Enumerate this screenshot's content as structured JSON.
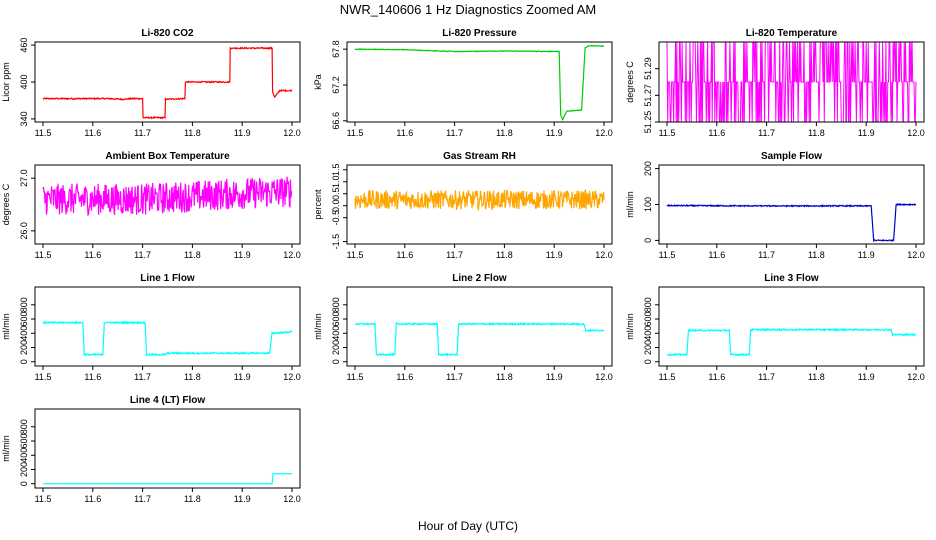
{
  "figure": {
    "title": "NWR_140606  1 Hz Diagnostics Zoomed AM",
    "xlabel": "Hour of Day (UTC)"
  },
  "chart_data": [
    {
      "type": "line",
      "title": "Li-820 CO2",
      "ylabel": "Licor ppm",
      "color": "#ff0000",
      "xlim": [
        11.5,
        12.0
      ],
      "xticks": [
        "11.5",
        "11.6",
        "11.7",
        "11.8",
        "11.9",
        "12.0"
      ],
      "ylim": [
        335,
        465
      ],
      "yticks": [
        "340",
        "400",
        "460"
      ],
      "ytick_values": [
        340,
        400,
        460
      ],
      "noise": 1.0,
      "points": [
        [
          11.5,
          373
        ],
        [
          11.63,
          373
        ],
        [
          11.66,
          372
        ],
        [
          11.68,
          373
        ],
        [
          11.7,
          373
        ],
        [
          11.701,
          342
        ],
        [
          11.745,
          342
        ],
        [
          11.746,
          372
        ],
        [
          11.785,
          373
        ],
        [
          11.786,
          400
        ],
        [
          11.875,
          400
        ],
        [
          11.876,
          455
        ],
        [
          11.96,
          455
        ],
        [
          11.961,
          385
        ],
        [
          11.965,
          375
        ],
        [
          11.975,
          386
        ],
        [
          12.0,
          386
        ]
      ]
    },
    {
      "type": "line",
      "title": "Li-820 Pressure",
      "ylabel": "kPa",
      "color": "#00cc00",
      "xlim": [
        11.5,
        12.0
      ],
      "xticks": [
        "11.5",
        "11.6",
        "11.7",
        "11.8",
        "11.9",
        "12.0"
      ],
      "ylim": [
        66.58,
        67.92
      ],
      "yticks": [
        "66.6",
        "67.2",
        "67.8"
      ],
      "ytick_values": [
        66.6,
        67.2,
        67.8
      ],
      "noise": 0.005,
      "points": [
        [
          11.5,
          67.8
        ],
        [
          11.6,
          67.79
        ],
        [
          11.7,
          67.76
        ],
        [
          11.8,
          67.77
        ],
        [
          11.91,
          67.76
        ],
        [
          11.913,
          66.7
        ],
        [
          11.917,
          66.62
        ],
        [
          11.925,
          66.76
        ],
        [
          11.955,
          66.78
        ],
        [
          11.962,
          67.82
        ],
        [
          11.97,
          67.86
        ],
        [
          12.0,
          67.85
        ]
      ]
    },
    {
      "type": "line",
      "title": "Li-820 Temperature",
      "ylabel": "degrees C",
      "color": "#ff00ff",
      "xlim": [
        11.5,
        12.0
      ],
      "xticks": [
        "11.5",
        "11.6",
        "11.7",
        "11.8",
        "11.9",
        "12.0"
      ],
      "ylim": [
        51.25,
        51.31
      ],
      "yticks": [
        "51.25",
        "51.27",
        "51.29"
      ],
      "ytick_values": [
        51.25,
        51.27,
        51.29
      ],
      "levels": [
        51.25,
        51.28,
        51.31
      ],
      "main_level": 51.28
    },
    {
      "type": "line",
      "title": "Ambient Box Temperature",
      "ylabel": "degrees C",
      "color": "#ff00ff",
      "xlim": [
        11.5,
        12.0
      ],
      "xticks": [
        "11.5",
        "11.6",
        "11.7",
        "11.8",
        "11.9",
        "12.0"
      ],
      "ylim": [
        25.75,
        27.25
      ],
      "yticks": [
        "26.0",
        "27.0"
      ],
      "ytick_values": [
        26.0,
        27.0
      ],
      "noise": 0.3,
      "points": [
        [
          11.5,
          26.6
        ],
        [
          11.7,
          26.6
        ],
        [
          11.88,
          26.7
        ],
        [
          12.0,
          26.75
        ]
      ]
    },
    {
      "type": "line",
      "title": "Gas Stream RH",
      "ylabel": "percent",
      "color": "#ffa500",
      "xlim": [
        11.5,
        12.0
      ],
      "xticks": [
        "11.5",
        "11.6",
        "11.7",
        "11.8",
        "11.9",
        "12.0"
      ],
      "ylim": [
        -1.6,
        1.7
      ],
      "yticks": [
        "-1.5",
        "-0.5",
        "0.0",
        "0.5",
        "1.0",
        "1.5"
      ],
      "ytick_values": [
        -1.5,
        -0.5,
        0.0,
        0.5,
        1.0,
        1.5
      ],
      "noise": 0.4,
      "points": [
        [
          11.5,
          0.25
        ],
        [
          12.0,
          0.25
        ]
      ]
    },
    {
      "type": "line",
      "title": "Sample Flow",
      "ylabel": "ml/min",
      "color": "#0000cc",
      "xlim": [
        11.5,
        12.0
      ],
      "xticks": [
        "11.5",
        "11.6",
        "11.7",
        "11.8",
        "11.9",
        "12.0"
      ],
      "ylim": [
        -10,
        210
      ],
      "yticks": [
        "0",
        "100",
        "200"
      ],
      "ytick_values": [
        0,
        100,
        200
      ],
      "noise": 1.5,
      "points": [
        [
          11.5,
          97
        ],
        [
          11.7,
          96
        ],
        [
          11.91,
          96
        ],
        [
          11.915,
          0
        ],
        [
          11.955,
          0
        ],
        [
          11.96,
          100
        ],
        [
          12.0,
          100
        ]
      ]
    },
    {
      "type": "line",
      "title": "Line 1 Flow",
      "ylabel": "ml/min",
      "color": "#00ffff",
      "xlim": [
        11.5,
        12.0
      ],
      "xticks": [
        "11.5",
        "11.6",
        "11.7",
        "11.8",
        "11.9",
        "12.0"
      ],
      "ylim": [
        -60,
        1050
      ],
      "yticks": [
        "0",
        "200",
        "400",
        "600",
        "800"
      ],
      "ytick_values": [
        0,
        200,
        400,
        600,
        800
      ],
      "noise": 10,
      "points": [
        [
          11.5,
          550
        ],
        [
          11.58,
          550
        ],
        [
          11.583,
          100
        ],
        [
          11.62,
          100
        ],
        [
          11.623,
          550
        ],
        [
          11.705,
          550
        ],
        [
          11.708,
          100
        ],
        [
          11.745,
          100
        ],
        [
          11.75,
          120
        ],
        [
          11.955,
          120
        ],
        [
          11.96,
          400
        ],
        [
          12.0,
          420
        ]
      ]
    },
    {
      "type": "line",
      "title": "Line 2 Flow",
      "ylabel": "ml/min",
      "color": "#00ffff",
      "xlim": [
        11.5,
        12.0
      ],
      "xticks": [
        "11.5",
        "11.6",
        "11.7",
        "11.8",
        "11.9",
        "12.0"
      ],
      "ylim": [
        -60,
        1050
      ],
      "yticks": [
        "0",
        "200",
        "400",
        "600",
        "800"
      ],
      "ytick_values": [
        0,
        200,
        400,
        600,
        800
      ],
      "noise": 10,
      "points": [
        [
          11.5,
          530
        ],
        [
          11.54,
          530
        ],
        [
          11.543,
          100
        ],
        [
          11.58,
          100
        ],
        [
          11.583,
          530
        ],
        [
          11.665,
          530
        ],
        [
          11.668,
          100
        ],
        [
          11.705,
          100
        ],
        [
          11.708,
          530
        ],
        [
          11.96,
          530
        ],
        [
          11.963,
          440
        ],
        [
          12.0,
          440
        ]
      ]
    },
    {
      "type": "line",
      "title": "Line 3 Flow",
      "ylabel": "ml/min",
      "color": "#00ffff",
      "xlim": [
        11.5,
        12.0
      ],
      "xticks": [
        "11.5",
        "11.6",
        "11.7",
        "11.8",
        "11.9",
        "12.0"
      ],
      "ylim": [
        -60,
        1050
      ],
      "yticks": [
        "0",
        "200",
        "400",
        "600",
        "800"
      ],
      "ytick_values": [
        0,
        200,
        400,
        600,
        800
      ],
      "noise": 10,
      "points": [
        [
          11.5,
          100
        ],
        [
          11.54,
          100
        ],
        [
          11.543,
          440
        ],
        [
          11.625,
          440
        ],
        [
          11.628,
          100
        ],
        [
          11.665,
          100
        ],
        [
          11.668,
          450
        ],
        [
          11.95,
          450
        ],
        [
          11.953,
          380
        ],
        [
          12.0,
          380
        ]
      ]
    },
    {
      "type": "line",
      "title": "Line 4 (LT) Flow",
      "ylabel": "ml/min",
      "color": "#00ffff",
      "xlim": [
        11.5,
        12.0
      ],
      "xticks": [
        "11.5",
        "11.6",
        "11.7",
        "11.8",
        "11.9",
        "12.0"
      ],
      "ylim": [
        -60,
        1050
      ],
      "yticks": [
        "0",
        "200",
        "400",
        "600",
        "800"
      ],
      "ytick_values": [
        0,
        200,
        400,
        600,
        800
      ],
      "noise": 2,
      "points": [
        [
          11.5,
          0
        ],
        [
          11.96,
          0
        ],
        [
          11.962,
          140
        ],
        [
          12.0,
          140
        ]
      ]
    }
  ]
}
